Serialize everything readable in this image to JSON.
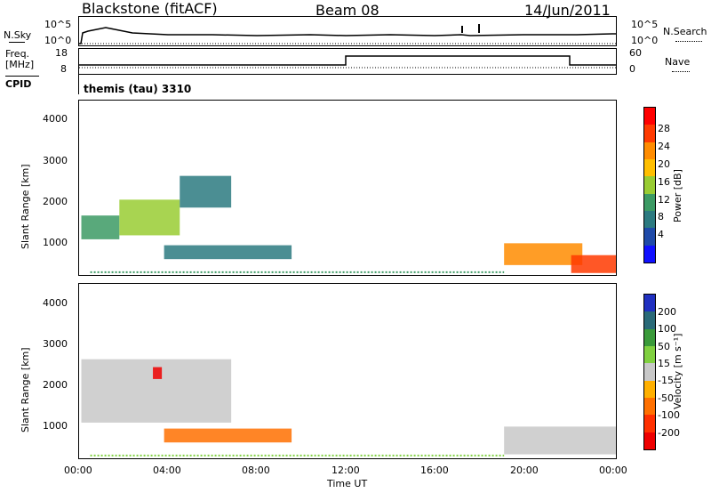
{
  "header": {
    "station": "Blackstone (fitACF)",
    "beam": "Beam 08",
    "date": "14/Jun/2011"
  },
  "top_panels": {
    "nsky_label": "N.Sky",
    "nsky_ticks": [
      "10^5",
      "10^0"
    ],
    "nsearch_label": "N.Search",
    "nsearch_ticks": [
      "10^5",
      "10^0"
    ],
    "freq_label_line1": "Freq.",
    "freq_label_line2": "[MHz]",
    "freq_ticks": [
      "18",
      "8"
    ],
    "nave_label": "Nave",
    "nave_ticks": [
      "60",
      "0"
    ],
    "cpid_label": "CPID",
    "cpid_value": "themis (tau) 3310"
  },
  "power_panel": {
    "ylabel": "Slant Range [km]",
    "yticks": [
      "4000",
      "3000",
      "2000",
      "1000"
    ],
    "colorbar_label": "Power [dB]",
    "colorbar_ticks": [
      "28",
      "24",
      "20",
      "16",
      "12",
      "8",
      "4"
    ],
    "colorbar_colors": [
      "#ff0000",
      "#ff3a00",
      "#ff8c00",
      "#ffbf00",
      "#99cc33",
      "#3c9a64",
      "#2c7a80",
      "#1f4aa8",
      "#1010ff"
    ]
  },
  "velocity_panel": {
    "ylabel": "Slant Range [km]",
    "yticks": [
      "4000",
      "3000",
      "2000",
      "1000"
    ],
    "colorbar_label": "Velocity [m s⁻¹]",
    "colorbar_ticks": [
      "200",
      "100",
      "50",
      "15",
      "-15",
      "-50",
      "-100",
      "-200"
    ],
    "colorbar_colors": [
      "#2030c0",
      "#2a6a78",
      "#3a9a3a",
      "#80d040",
      "#c8c8c8",
      "#ffb000",
      "#ff7000",
      "#ff3000",
      "#ee0000"
    ]
  },
  "xaxis": {
    "label": "Time UT",
    "ticks": [
      "00:00",
      "04:00",
      "08:00",
      "12:00",
      "16:00",
      "20:00",
      "00:00"
    ]
  },
  "chart_data": {
    "type": "heatmap",
    "title": "Blackstone (fitACF) Beam 08 14/Jun/2011",
    "xlabel": "Time UT",
    "ylabel": "Slant Range [km]",
    "xlim": [
      0,
      24
    ],
    "ylim": [
      200,
      4600
    ],
    "frequency_MHz": [
      {
        "t_start": 0,
        "t_end": 12,
        "value": 10
      },
      {
        "t_start": 12,
        "t_end": 22,
        "value": 15
      },
      {
        "t_start": 22,
        "t_end": 24,
        "value": 10
      }
    ],
    "power_regions": [
      {
        "t_start": 0.1,
        "t_end": 1.8,
        "range_start": 1100,
        "range_end": 1700,
        "power_dB": 14
      },
      {
        "t_start": 1.8,
        "t_end": 4.5,
        "range_start": 1200,
        "range_end": 2100,
        "power_dB": 16
      },
      {
        "t_start": 4.5,
        "t_end": 6.8,
        "range_start": 1900,
        "range_end": 2700,
        "power_dB": 10
      },
      {
        "t_start": 3.8,
        "t_end": 9.5,
        "range_start": 600,
        "range_end": 950,
        "power_dB": 8
      },
      {
        "t_start": 19.0,
        "t_end": 22.5,
        "range_start": 450,
        "range_end": 1000,
        "power_dB": 22
      },
      {
        "t_start": 22.0,
        "t_end": 24.0,
        "range_start": 250,
        "range_end": 700,
        "power_dB": 26
      }
    ],
    "velocity_regions": [
      {
        "t_start": 0.1,
        "t_end": 6.8,
        "range_start": 1100,
        "range_end": 2700,
        "velocity_ms": 0
      },
      {
        "t_start": 3.8,
        "t_end": 9.5,
        "range_start": 600,
        "range_end": 950,
        "velocity_ms": -60
      },
      {
        "t_start": 3.3,
        "t_end": 3.7,
        "range_start": 2200,
        "range_end": 2500,
        "velocity_ms": -210
      },
      {
        "t_start": 19.0,
        "t_end": 24.0,
        "range_start": 300,
        "range_end": 1000,
        "velocity_ms": 0
      }
    ]
  }
}
